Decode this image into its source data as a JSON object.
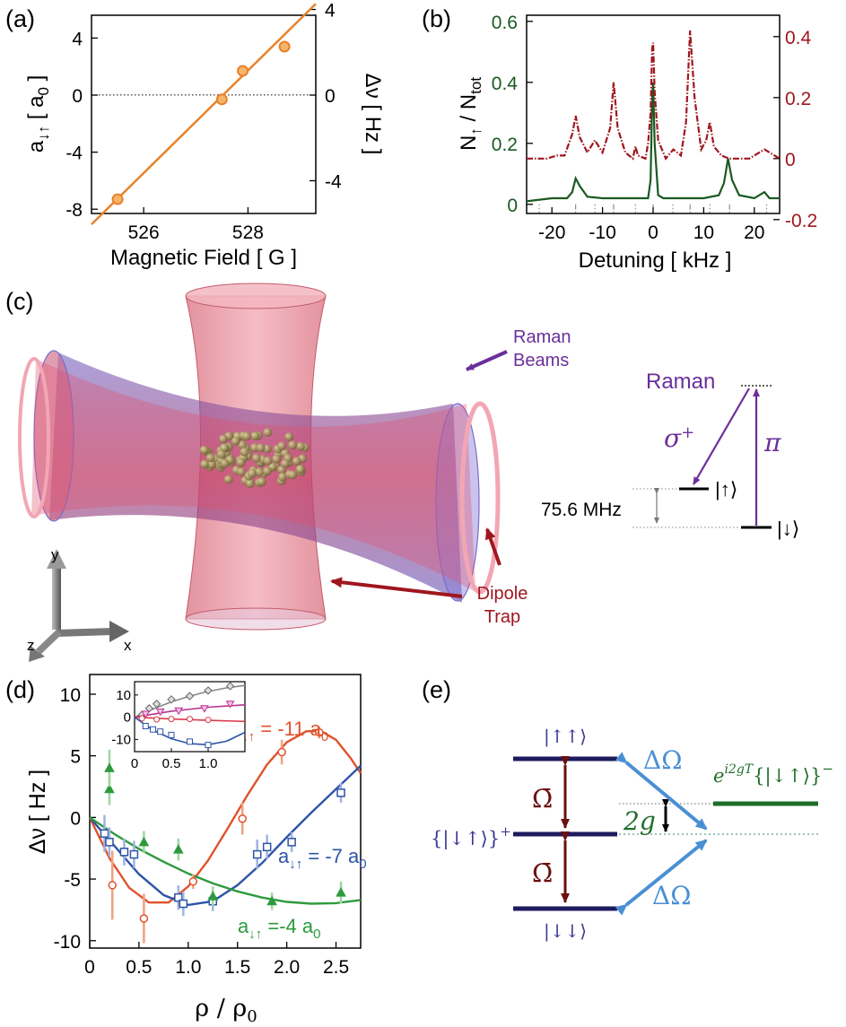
{
  "panels": {
    "a": {
      "label": "(a)"
    },
    "b": {
      "label": "(b)"
    },
    "c": {
      "label": "(c)"
    },
    "d": {
      "label": "(d)"
    },
    "e": {
      "label": "(e)"
    }
  },
  "colors": {
    "orange": "#e8822a",
    "dark_green": "#1a5a22",
    "dark_red": "#a0161e",
    "purple": "#6b2f9a",
    "navy": "#1e1a5e",
    "light_blue": "#4a8fd4",
    "green_e": "#1f6e2c",
    "red_d": "#e0522b",
    "blue_d": "#2d54a8",
    "green_d": "#2e9a3e"
  },
  "chart_data": [
    {
      "id": "a",
      "type": "scatter",
      "xlabel": "Magnetic Field [ G ]",
      "ylabel_left": "a↓↑ [ a0 ]",
      "ylabel_right": "Δν [ Hz ]",
      "xlim": [
        525.0,
        529.3
      ],
      "ylim": [
        -8.3,
        5.6
      ],
      "ylim_right": [
        -5.53,
        3.73
      ],
      "xticks": [
        "526",
        "528"
      ],
      "yticks_left": [
        "4",
        "0",
        "-4",
        "-8"
      ],
      "yticks_right": [
        "4",
        "0",
        "-4"
      ],
      "points": [
        [
          525.5,
          -7.3
        ],
        [
          527.5,
          -0.3
        ],
        [
          527.9,
          1.7
        ],
        [
          528.7,
          3.4
        ]
      ],
      "fit_line": [
        [
          525.0,
          -9.06
        ],
        [
          529.3,
          6.4
        ]
      ]
    },
    {
      "id": "b",
      "type": "line",
      "xlabel": "Detuning [ kHz ]",
      "ylabel_left": "N↑ / Ntot",
      "xlim": [
        -25,
        25
      ],
      "ylim": [
        -0.03,
        0.62
      ],
      "xticks": [
        "-20",
        "-10",
        "0",
        "10",
        "20"
      ],
      "yticks_left": [
        "0",
        "0.2",
        "0.4",
        "0.6"
      ],
      "yticks_right": [
        "0.4",
        "0.2",
        "0",
        "-0.2"
      ],
      "series": [
        {
          "axis": "left",
          "color": "#1a5a22",
          "x": [
            -25,
            -20,
            -17,
            -16,
            -15.3,
            -14.5,
            -13,
            -10,
            -5,
            -2,
            -1,
            -0.5,
            -0.2,
            0,
            0.3,
            1,
            2,
            5,
            8,
            10,
            13,
            14,
            14.8,
            15.6,
            17,
            20,
            22,
            23,
            25
          ],
          "y": [
            0.01,
            0.02,
            0.02,
            0.04,
            0.085,
            0.06,
            0.025,
            0.02,
            0.02,
            0.02,
            0.02,
            0.08,
            0.34,
            0.4,
            0.2,
            0.03,
            0.02,
            0.02,
            0.02,
            0.02,
            0.03,
            0.07,
            0.15,
            0.08,
            0.03,
            0.02,
            0.04,
            0.02,
            0.02
          ]
        },
        {
          "axis": "right",
          "color": "#a0161e",
          "x": [
            -25,
            -21,
            -19,
            -17.5,
            -16,
            -15.3,
            -14.5,
            -13,
            -11.5,
            -10,
            -8.5,
            -7.8,
            -7,
            -5.5,
            -4,
            -3.5,
            -3,
            -1.5,
            -1,
            -0.5,
            -0.2,
            0,
            0.3,
            1,
            2.5,
            4,
            5.5,
            6.5,
            7.3,
            8.2,
            9.5,
            10.5,
            11.2,
            12,
            13.5,
            15,
            17,
            19,
            22,
            25
          ],
          "y": [
            0.0,
            0.0,
            0.01,
            0.01,
            0.08,
            0.14,
            0.07,
            0.02,
            0.06,
            0.02,
            0.1,
            0.25,
            0.1,
            0.02,
            0.0,
            0.04,
            0.01,
            0.0,
            0.05,
            0.15,
            0.36,
            0.38,
            0.22,
            0.06,
            0.0,
            0.03,
            0.01,
            0.12,
            0.42,
            0.2,
            0.03,
            0.06,
            0.12,
            0.04,
            0.01,
            0.0,
            0.0,
            0.0,
            0.03,
            0.0
          ]
        }
      ]
    },
    {
      "id": "d",
      "type": "scatter",
      "xlabel": "ρ / ρ0",
      "ylabel": "Δν [ Hz ]",
      "xlim": [
        0,
        2.75
      ],
      "ylim": [
        -10.6,
        11.6
      ],
      "xticks": [
        "0",
        "0.5",
        "1.0",
        "1.5",
        "2.0",
        "2.5"
      ],
      "yticks": [
        "10",
        "5",
        "0",
        "-5",
        "-10"
      ],
      "series": [
        {
          "name": "a↓↑ = -11 a0",
          "color": "#e0522b",
          "marker": "circle",
          "points": [
            [
              0.23,
              -5.5
            ],
            [
              0.55,
              -8.2
            ],
            [
              1.05,
              -5.2
            ],
            [
              1.55,
              -0.1
            ],
            [
              1.95,
              5.3
            ],
            [
              2.33,
              6.9
            ]
          ],
          "errors": [
            2.8,
            2.0,
            0.6,
            1.3,
            1.0,
            0.5
          ],
          "fit": [
            [
              0,
              0
            ],
            [
              0.2,
              -3.3
            ],
            [
              0.4,
              -5.7
            ],
            [
              0.6,
              -6.9
            ],
            [
              0.8,
              -6.9
            ],
            [
              1.0,
              -5.6
            ],
            [
              1.2,
              -3.5
            ],
            [
              1.4,
              -0.9
            ],
            [
              1.6,
              1.8
            ],
            [
              1.8,
              4.3
            ],
            [
              2.0,
              6.1
            ],
            [
              2.2,
              7.0
            ],
            [
              2.35,
              7.0
            ],
            [
              2.5,
              6.3
            ],
            [
              2.65,
              4.8
            ],
            [
              2.75,
              3.6
            ]
          ]
        },
        {
          "name": "a↓↑ = -7 a0",
          "color": "#2d54a8",
          "marker": "square",
          "points": [
            [
              0.15,
              -1.3
            ],
            [
              0.2,
              -2.0
            ],
            [
              0.35,
              -2.8
            ],
            [
              0.45,
              -3.0
            ],
            [
              0.9,
              -6.5
            ],
            [
              0.95,
              -7.0
            ],
            [
              1.25,
              -6.8
            ],
            [
              1.7,
              -3.0
            ],
            [
              1.8,
              -2.4
            ],
            [
              2.05,
              -2.0
            ],
            [
              2.55,
              2.0
            ]
          ],
          "errors": [
            1.5,
            1.2,
            1.1,
            1.1,
            1.0,
            1.0,
            0.8,
            1.2,
            1.0,
            0.8,
            0.8
          ],
          "fit": [
            [
              0,
              0
            ],
            [
              0.25,
              -2.3
            ],
            [
              0.5,
              -4.6
            ],
            [
              0.75,
              -6.3
            ],
            [
              1.0,
              -7.1
            ],
            [
              1.25,
              -6.8
            ],
            [
              1.5,
              -5.5
            ],
            [
              1.75,
              -3.7
            ],
            [
              2.0,
              -1.6
            ],
            [
              2.25,
              0.4
            ],
            [
              2.5,
              2.3
            ],
            [
              2.75,
              4.2
            ]
          ]
        },
        {
          "name": "a↓↑ = -4 a0",
          "color": "#2e9a3e",
          "marker": "triangle",
          "points": [
            [
              0.2,
              2.3
            ],
            [
              0.2,
              4.0
            ],
            [
              0.55,
              -2.0
            ],
            [
              0.9,
              -2.6
            ],
            [
              1.25,
              -6.4
            ],
            [
              1.85,
              -6.8
            ],
            [
              2.55,
              -6.1
            ]
          ],
          "errors": [
            1.3,
            1.5,
            0.9,
            0.9,
            0.8,
            0.7,
            0.9
          ],
          "fit": [
            [
              0,
              0
            ],
            [
              0.25,
              -1.35
            ],
            [
              0.5,
              -2.55
            ],
            [
              0.75,
              -3.6
            ],
            [
              1.0,
              -4.55
            ],
            [
              1.25,
              -5.35
            ],
            [
              1.5,
              -6.0
            ],
            [
              1.75,
              -6.5
            ],
            [
              2.0,
              -6.85
            ],
            [
              2.25,
              -7.0
            ],
            [
              2.5,
              -6.95
            ],
            [
              2.75,
              -6.7
            ]
          ]
        }
      ],
      "labels": {
        "red": "a↓↑ = -11 a0",
        "blue": "a↓↑ = -7 a0",
        "green": "a↓↑ = -4 a0"
      }
    },
    {
      "id": "d_inset",
      "type": "scatter",
      "xlim": [
        0,
        1.5
      ],
      "ylim": [
        -15.5,
        16
      ],
      "xticks": [
        "0",
        "0.5",
        "1.0"
      ],
      "yticks": [
        "10",
        "0",
        "-10"
      ],
      "series": [
        {
          "color": "#888888",
          "marker": "diamond",
          "points": [
            [
              0.1,
              1
            ],
            [
              0.2,
              4
            ],
            [
              0.3,
              6
            ],
            [
              0.5,
              8
            ],
            [
              0.75,
              9.5
            ],
            [
              1.0,
              12
            ],
            [
              1.3,
              14
            ]
          ],
          "fit": [
            [
              0,
              0
            ],
            [
              0.25,
              3.7
            ],
            [
              0.5,
              6.9
            ],
            [
              0.75,
              9.5
            ],
            [
              1.0,
              11.6
            ],
            [
              1.25,
              13.2
            ],
            [
              1.5,
              14.3
            ]
          ]
        },
        {
          "color": "#b8338e",
          "marker": "triangle-down",
          "points": [
            [
              0.15,
              1.5
            ],
            [
              0.35,
              2.5
            ],
            [
              0.6,
              3
            ],
            [
              0.95,
              4
            ],
            [
              1.3,
              6
            ]
          ],
          "fit": [
            [
              0,
              0
            ],
            [
              0.5,
              2.7
            ],
            [
              1.0,
              4.5
            ],
            [
              1.5,
              5.6
            ]
          ]
        },
        {
          "color": "#d83b4a",
          "marker": "circle",
          "points": [
            [
              0.1,
              -0.5
            ],
            [
              0.3,
              -1
            ],
            [
              0.5,
              -0.8
            ],
            [
              0.75,
              -0.8
            ],
            [
              1.0,
              -1.2
            ]
          ],
          "fit": [
            [
              0,
              0
            ],
            [
              0.5,
              -0.8
            ],
            [
              1.0,
              -1.4
            ],
            [
              1.5,
              -1.9
            ]
          ]
        },
        {
          "color": "#2d54a8",
          "marker": "square",
          "points": [
            [
              0.15,
              -4
            ],
            [
              0.25,
              -5.5
            ],
            [
              0.35,
              -6.5
            ],
            [
              0.5,
              -8
            ],
            [
              0.75,
              -11
            ],
            [
              1.0,
              -12.5
            ]
          ],
          "fit": [
            [
              0,
              0
            ],
            [
              0.25,
              -5.8
            ],
            [
              0.5,
              -9.7
            ],
            [
              0.75,
              -11.9
            ],
            [
              1.0,
              -12.4
            ],
            [
              1.25,
              -10.8
            ],
            [
              1.5,
              -6.8
            ]
          ]
        }
      ]
    }
  ],
  "panel_c": {
    "raman_beams": "Raman Beams",
    "dipole_trap": "Dipole Trap",
    "axis_y": "y",
    "axis_z": "z",
    "axis_x": "x",
    "level_raman": "Raman",
    "sigma_plus": "σ+",
    "pi": "π",
    "ket_up": "|↑⟩",
    "ket_down": "|↓⟩",
    "splitting": "75.6 MHz"
  },
  "panel_e": {
    "ket_upup": "|↑↑⟩",
    "ket_plus": "{|↓↑⟩}+",
    "ket_downdown": "|↓↓⟩",
    "omega_bar": "Ω̄",
    "two_g": "2g",
    "delta_omega": "ΔΩ",
    "ket_minus": "e^{i2gT} {|↓↑⟩}−"
  }
}
